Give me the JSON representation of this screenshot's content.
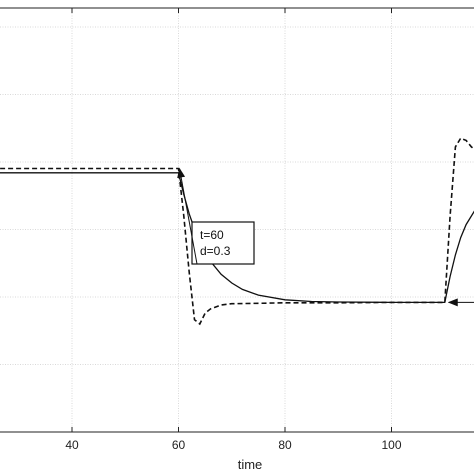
{
  "chart_data": {
    "type": "line",
    "xlabel": "time",
    "x_ticks": [
      40,
      60,
      80,
      100
    ],
    "xlim": [
      25,
      120
    ],
    "ylim": [
      0,
      1
    ],
    "grid": true,
    "series": [
      {
        "style": "solid",
        "points": [
          [
            25,
            0.6
          ],
          [
            60,
            0.6
          ],
          [
            61,
            0.55
          ],
          [
            62,
            0.505
          ],
          [
            63,
            0.47
          ],
          [
            64,
            0.44
          ],
          [
            65,
            0.415
          ],
          [
            66,
            0.395
          ],
          [
            68,
            0.365
          ],
          [
            70,
            0.345
          ],
          [
            72,
            0.33
          ],
          [
            75,
            0.317
          ],
          [
            80,
            0.306
          ],
          [
            85,
            0.302
          ],
          [
            90,
            0.301
          ],
          [
            100,
            0.3
          ],
          [
            110,
            0.3
          ],
          [
            111,
            0.36
          ],
          [
            112,
            0.41
          ],
          [
            113,
            0.45
          ],
          [
            114,
            0.48
          ],
          [
            116,
            0.52
          ],
          [
            118,
            0.545
          ],
          [
            120,
            0.56
          ]
        ]
      },
      {
        "style": "dashed",
        "points": [
          [
            25,
            0.61
          ],
          [
            60,
            0.61
          ],
          [
            61,
            0.5
          ],
          [
            62,
            0.37
          ],
          [
            63,
            0.26
          ],
          [
            64,
            0.25
          ],
          [
            65,
            0.275
          ],
          [
            66,
            0.285
          ],
          [
            68,
            0.294
          ],
          [
            70,
            0.297
          ],
          [
            75,
            0.298
          ],
          [
            80,
            0.299
          ],
          [
            90,
            0.299
          ],
          [
            100,
            0.3
          ],
          [
            110,
            0.3
          ],
          [
            111,
            0.5
          ],
          [
            112,
            0.66
          ],
          [
            113,
            0.68
          ],
          [
            114,
            0.675
          ],
          [
            115,
            0.66
          ],
          [
            116,
            0.65
          ],
          [
            118,
            0.63
          ],
          [
            120,
            0.62
          ]
        ]
      }
    ],
    "annotations": [
      {
        "lines": [
          "t=60",
          "d=0.3"
        ],
        "target": [
          60,
          0.605
        ]
      },
      {
        "lines": [],
        "target": [
          110,
          0.3
        ]
      }
    ]
  }
}
